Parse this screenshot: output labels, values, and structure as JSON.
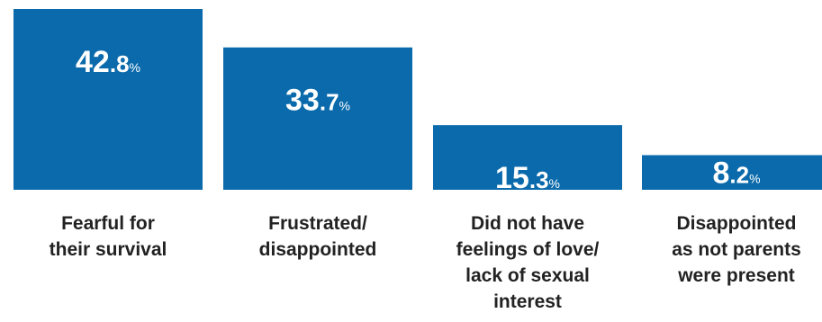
{
  "chart_data": {
    "type": "bar",
    "categories": [
      [
        "Fearful for",
        "their survival"
      ],
      [
        "Frustrated/",
        "disappointed"
      ],
      [
        "Did not have",
        "feelings of love/",
        "lack of sexual",
        "interest"
      ],
      [
        "Disappointed",
        "as not parents",
        "were present"
      ]
    ],
    "values": [
      42.8,
      33.7,
      15.3,
      8.2
    ],
    "value_labels": [
      {
        "int": "42",
        "dec": ".8",
        "unit": "%"
      },
      {
        "int": "33",
        "dec": ".7",
        "unit": "%"
      },
      {
        "int": "15",
        "dec": ".3",
        "unit": "%"
      },
      {
        "int": "8",
        "dec": ".2",
        "unit": "%"
      }
    ],
    "ylim": [
      0,
      42.8
    ],
    "grid": false,
    "legend": "none",
    "bar_color": "#0a6aab"
  }
}
